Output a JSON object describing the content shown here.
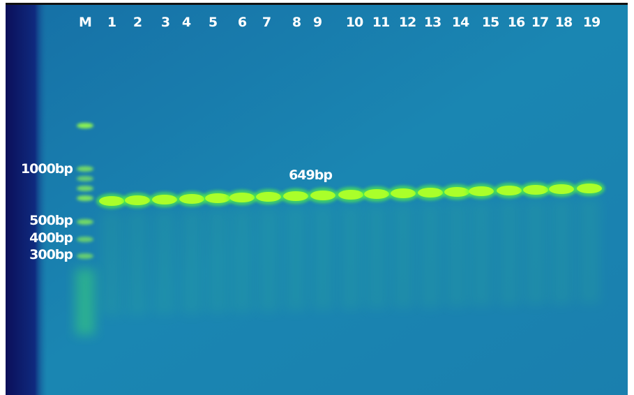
{
  "lanes": [
    "M",
    "1",
    "2",
    "3",
    "4",
    "5",
    "6",
    "7",
    "8",
    "9",
    "10",
    "11",
    "12",
    "13",
    "14",
    "15",
    "16",
    "17",
    "18",
    "19"
  ],
  "markers": [
    "1000bp",
    "500bp",
    "400bp",
    "300bp"
  ],
  "band_label": "649bp"
}
